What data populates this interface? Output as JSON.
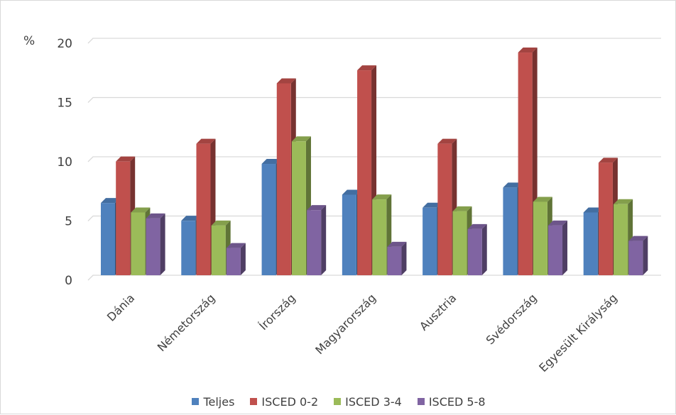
{
  "chart_data": {
    "type": "bar",
    "unit_label": "%",
    "categories": [
      "Dánia",
      "Németország",
      "Írország",
      "Magyarország",
      "Ausztria",
      "Svédország",
      "Egyesült Királyság"
    ],
    "series": [
      {
        "name": "Teljes",
        "color": "#4f81bd",
        "values": [
          6.1,
          4.6,
          9.4,
          6.8,
          5.7,
          7.4,
          5.3
        ]
      },
      {
        "name": "ISCED 0-2",
        "color": "#c0504d",
        "values": [
          9.6,
          11.1,
          16.2,
          17.3,
          11.1,
          18.8,
          9.5
        ]
      },
      {
        "name": "ISCED 3-4",
        "color": "#9bbb59",
        "values": [
          5.3,
          4.2,
          11.3,
          6.4,
          5.4,
          6.2,
          6.0
        ]
      },
      {
        "name": "ISCED 5-8",
        "color": "#8064a2",
        "values": [
          4.8,
          2.3,
          5.5,
          2.4,
          3.9,
          4.2,
          2.9
        ]
      }
    ],
    "yticks": [
      0,
      5,
      10,
      15,
      20
    ],
    "ylim": [
      0,
      20
    ],
    "grid": true,
    "legend_position": "bottom",
    "style": "3d-clustered-column"
  }
}
